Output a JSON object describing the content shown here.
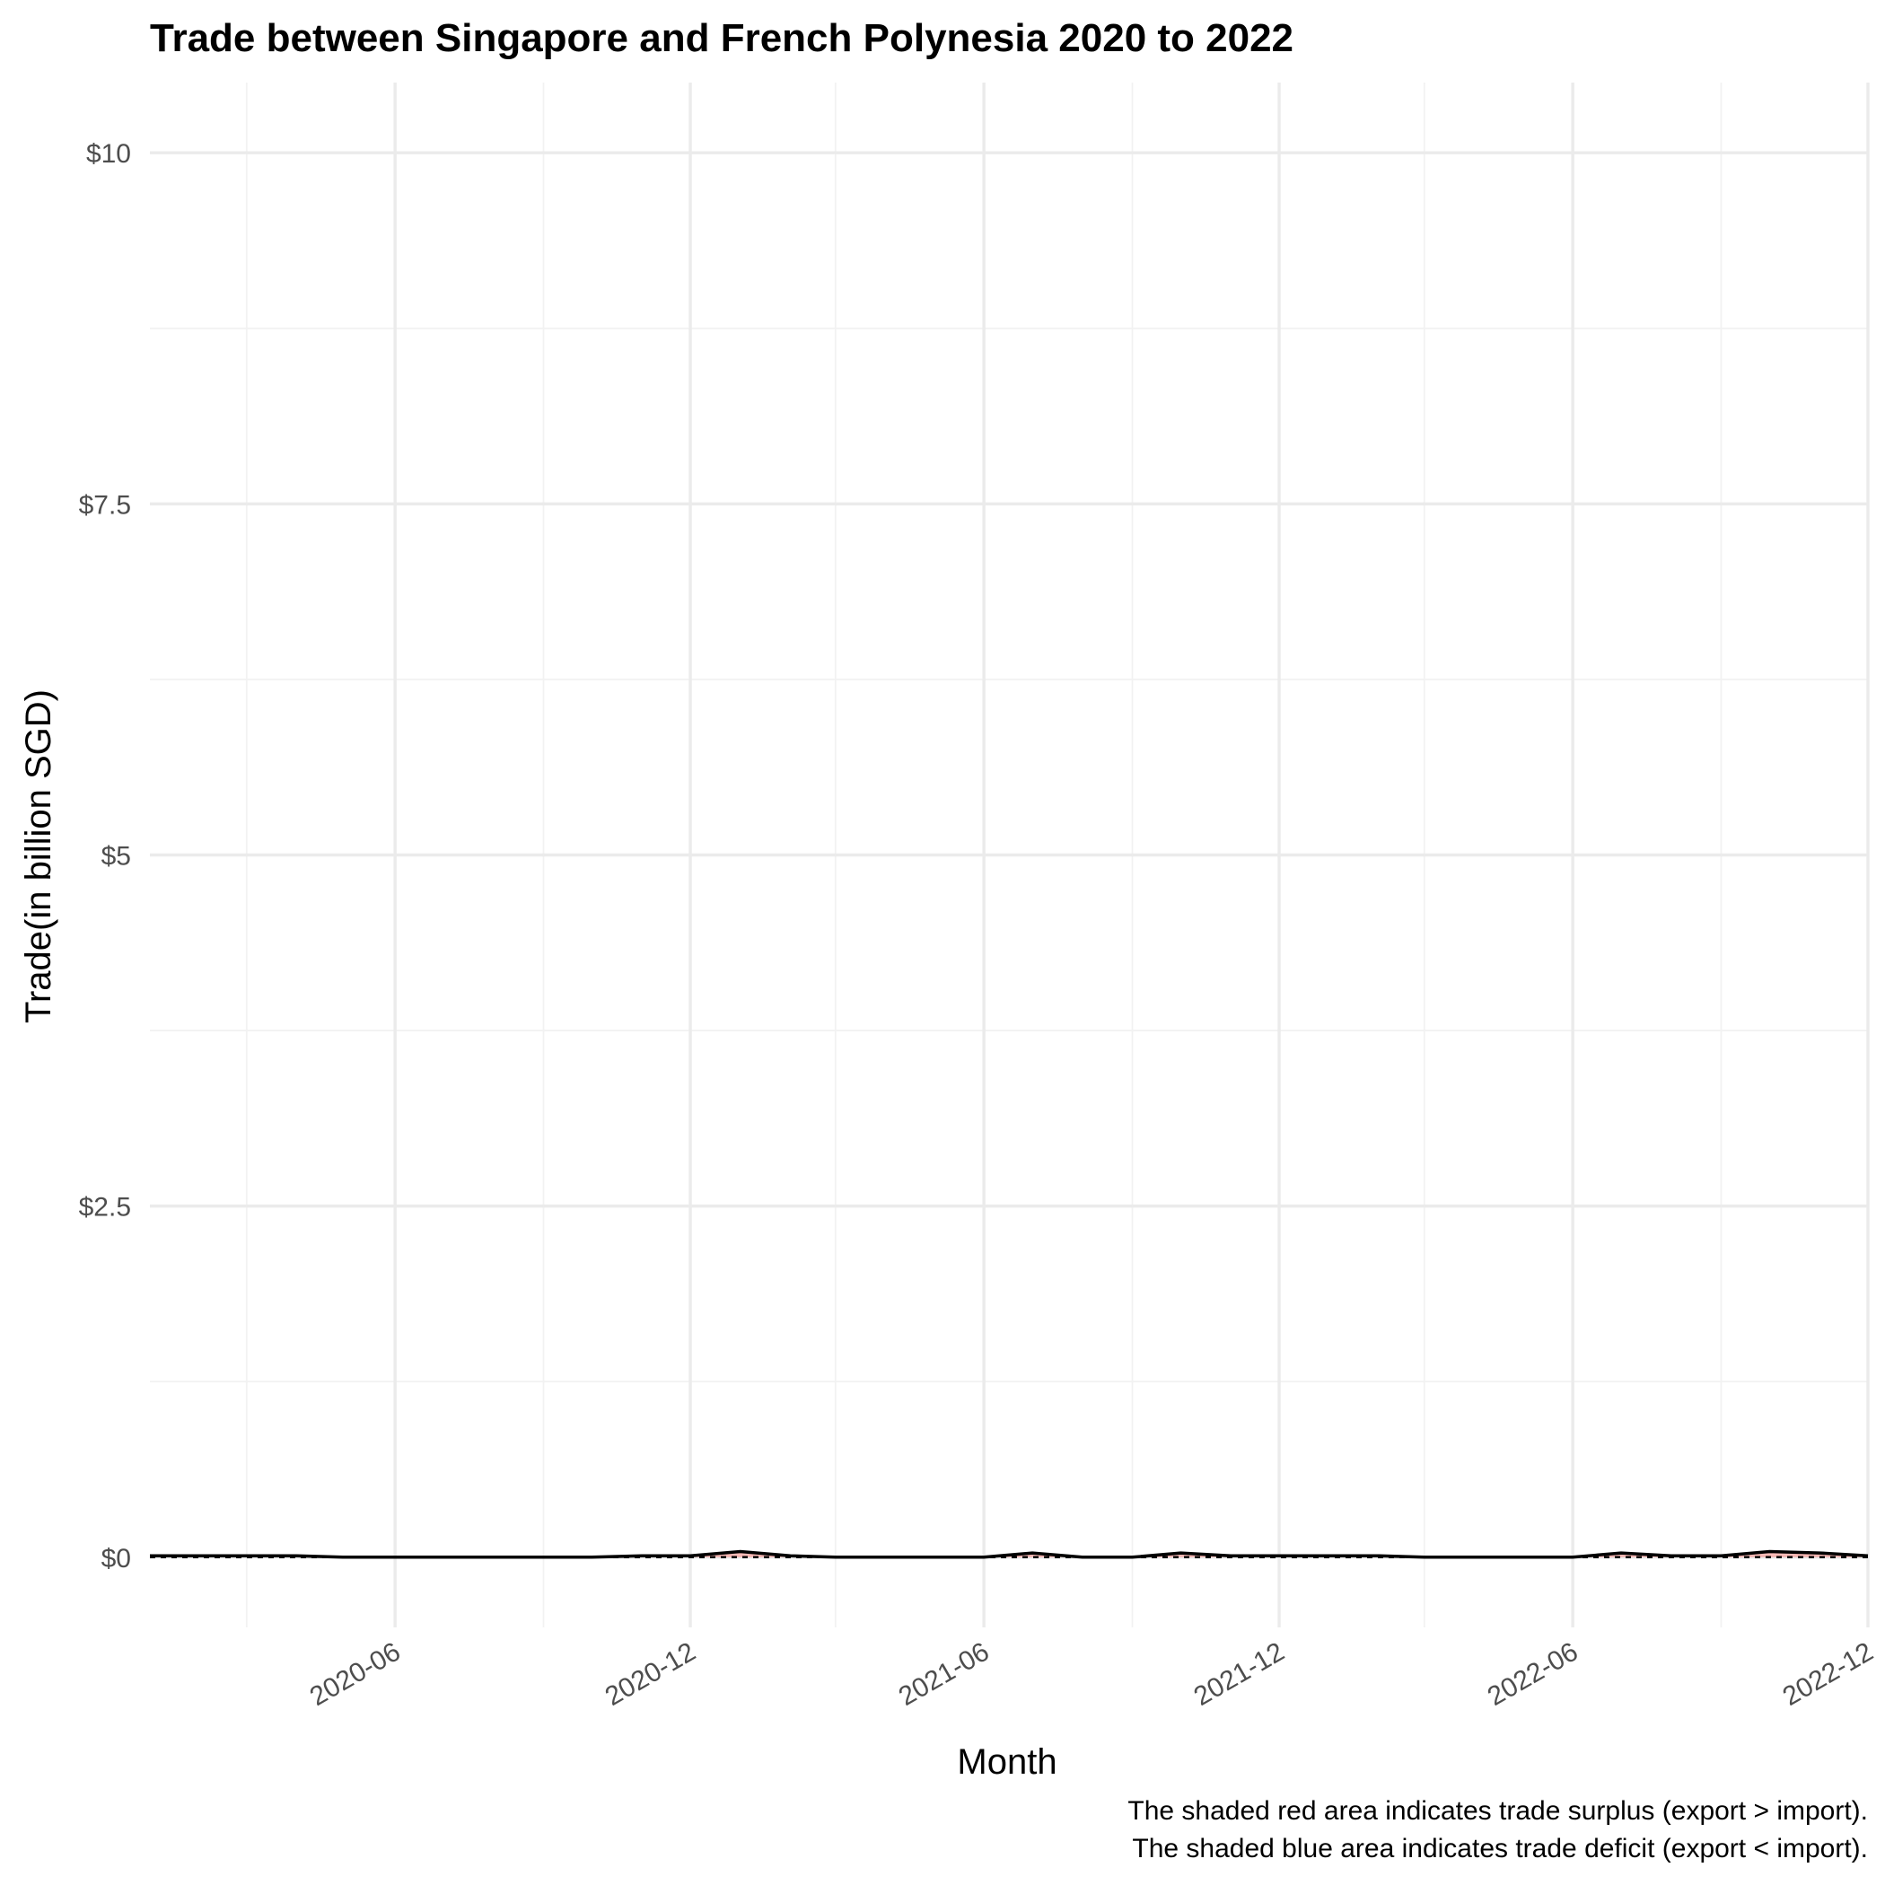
{
  "chart_data": {
    "type": "line",
    "title": "Trade between Singapore and French Polynesia  2020 to 2022",
    "xlabel": "Month",
    "ylabel": "Trade(in billion SGD)",
    "x_ticks": [
      "2020-06",
      "2020-12",
      "2021-06",
      "2021-12",
      "2022-06",
      "2022-12"
    ],
    "y_ticks": [
      "$0",
      "$2.5",
      "$5",
      "$7.5",
      "$10"
    ],
    "ylim": [
      -0.5,
      10.5
    ],
    "grid": true,
    "x": [
      "2020-01",
      "2020-02",
      "2020-03",
      "2020-04",
      "2020-05",
      "2020-06",
      "2020-07",
      "2020-08",
      "2020-09",
      "2020-10",
      "2020-11",
      "2020-12",
      "2021-01",
      "2021-02",
      "2021-03",
      "2021-04",
      "2021-05",
      "2021-06",
      "2021-07",
      "2021-08",
      "2021-09",
      "2021-10",
      "2021-11",
      "2021-12",
      "2022-01",
      "2022-02",
      "2022-03",
      "2022-04",
      "2022-05",
      "2022-06",
      "2022-07",
      "2022-08",
      "2022-09",
      "2022-10",
      "2022-11",
      "2022-12"
    ],
    "series": [
      {
        "values": [
          0.01,
          0.01,
          0.01,
          0.01,
          0,
          0,
          0,
          0,
          0,
          0,
          0.01,
          0.01,
          0.04,
          0.01,
          0,
          0,
          0,
          0,
          0.03,
          0,
          0,
          0.03,
          0.01,
          0.01,
          0.01,
          0.01,
          0,
          0,
          0,
          0,
          0.03,
          0.01,
          0.01,
          0.04,
          0.03,
          0.01
        ]
      },
      {
        "values": [
          0,
          0,
          0,
          0,
          0,
          0,
          0,
          0,
          0,
          0,
          0,
          0,
          0,
          0,
          0,
          0,
          0,
          0,
          0,
          0,
          0,
          0,
          0,
          0,
          0,
          0,
          0,
          0,
          0,
          0,
          0,
          0,
          0,
          0,
          0,
          0
        ]
      }
    ],
    "colors": {
      "surplus": "#f8766d",
      "deficit": "#00bfc4",
      "line": "#000000"
    },
    "caption_lines": [
      "The shaded red area indicates trade surplus (export > import).",
      "The shaded blue area indicates trade deficit (export < import)."
    ]
  }
}
